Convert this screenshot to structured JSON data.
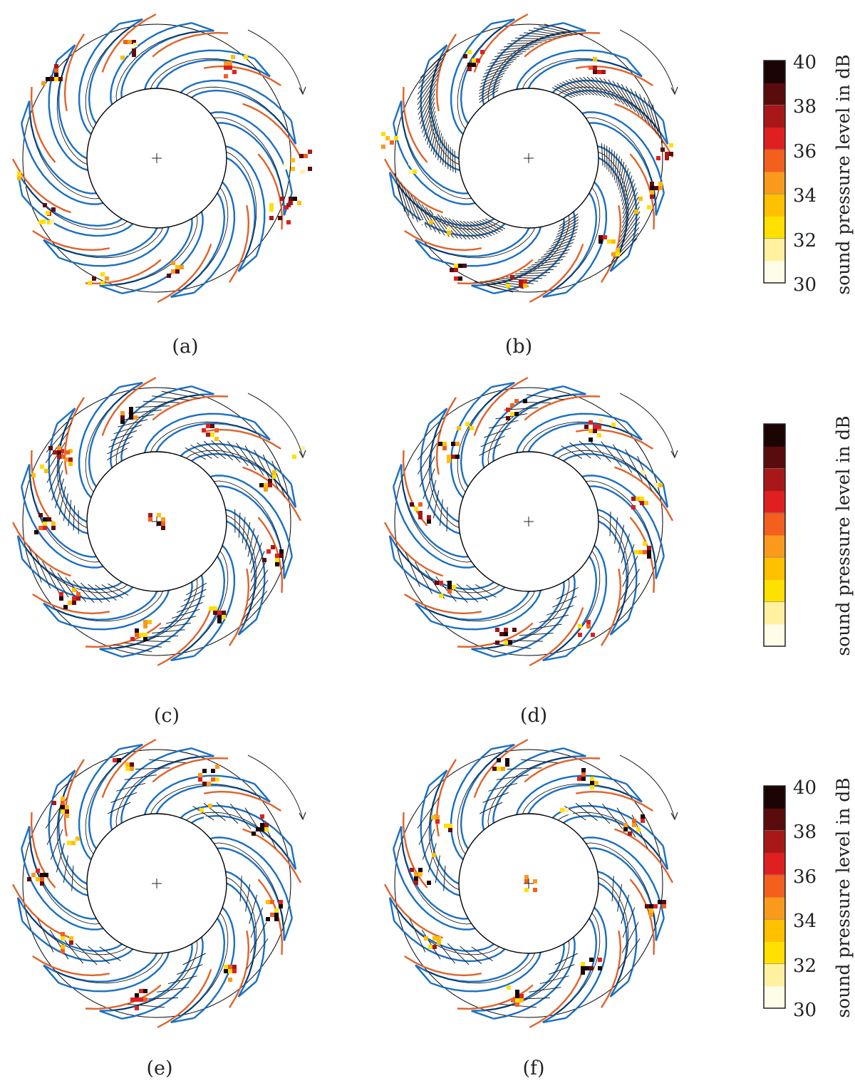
{
  "panels": [
    {
      "label": "(a)",
      "hatch": "none",
      "sources": [
        [
          -150,
          -120,
          3
        ],
        [
          -35,
          -160,
          2
        ],
        [
          -45,
          -150,
          1
        ],
        [
          100,
          -130,
          2
        ],
        [
          110,
          -145,
          1
        ],
        [
          200,
          0,
          2
        ],
        [
          190,
          10,
          1
        ],
        [
          -160,
          75,
          2
        ],
        [
          -150,
          80,
          1
        ],
        [
          -85,
          160,
          2
        ],
        [
          20,
          150,
          2
        ],
        [
          185,
          60,
          3
        ],
        [
          170,
          75,
          2
        ],
        [
          -190,
          25,
          1
        ]
      ]
    },
    {
      "label": "(b)",
      "hatch": "dense",
      "sources": [
        [
          -80,
          -140,
          3
        ],
        [
          90,
          -130,
          2
        ],
        [
          185,
          -15,
          2
        ],
        [
          160,
          60,
          1
        ],
        [
          170,
          45,
          3
        ],
        [
          -20,
          170,
          2
        ],
        [
          -105,
          160,
          3
        ],
        [
          110,
          120,
          3
        ],
        [
          -115,
          90,
          1
        ],
        [
          -175,
          10,
          1
        ],
        [
          -195,
          -25,
          2
        ],
        [
          -140,
          75,
          1
        ]
      ]
    },
    {
      "label": "(c)",
      "hatch": "medium",
      "sources": [
        [
          -45,
          -155,
          3
        ],
        [
          -130,
          -90,
          2
        ],
        [
          -140,
          -100,
          3
        ],
        [
          75,
          -125,
          3
        ],
        [
          150,
          -60,
          3
        ],
        [
          160,
          45,
          3
        ],
        [
          85,
          125,
          3
        ],
        [
          -25,
          150,
          3
        ],
        [
          -125,
          105,
          3
        ],
        [
          -160,
          0,
          3
        ],
        [
          0,
          0,
          3
        ],
        [
          -170,
          -80,
          1
        ],
        [
          190,
          -100,
          1
        ]
      ]
    },
    {
      "label": "(d)",
      "hatch": "sparse",
      "sources": [
        [
          -20,
          -160,
          3
        ],
        [
          90,
          -130,
          3
        ],
        [
          -115,
          -100,
          3
        ],
        [
          150,
          -35,
          2
        ],
        [
          160,
          40,
          3
        ],
        [
          -155,
          -15,
          3
        ],
        [
          -120,
          95,
          3
        ],
        [
          -35,
          155,
          3
        ],
        [
          75,
          150,
          2
        ],
        [
          110,
          -145,
          1
        ],
        [
          170,
          -60,
          1
        ],
        [
          -95,
          -140,
          1
        ]
      ]
    },
    {
      "label": "(e)",
      "hatch": "very-sparse",
      "sources": [
        [
          -50,
          -170,
          3
        ],
        [
          70,
          -155,
          3
        ],
        [
          145,
          -85,
          3
        ],
        [
          165,
          35,
          3
        ],
        [
          100,
          120,
          3
        ],
        [
          -25,
          160,
          3
        ],
        [
          -135,
          80,
          2
        ],
        [
          -170,
          -15,
          3
        ],
        [
          -135,
          -110,
          3
        ],
        [
          -120,
          -60,
          1
        ],
        [
          60,
          -100,
          1
        ]
      ]
    },
    {
      "label": "(f)",
      "hatch": "very-sparse",
      "sources": [
        [
          -45,
          -170,
          3
        ],
        [
          80,
          -150,
          3
        ],
        [
          145,
          -85,
          3
        ],
        [
          175,
          35,
          3
        ],
        [
          85,
          110,
          3
        ],
        [
          -25,
          155,
          3
        ],
        [
          -135,
          80,
          2
        ],
        [
          -155,
          -10,
          3
        ],
        [
          -125,
          -90,
          2
        ],
        [
          0,
          0,
          2
        ],
        [
          -130,
          -55,
          1
        ],
        [
          50,
          -100,
          1
        ]
      ]
    }
  ],
  "colorbar": {
    "title": "sound pressure level in dB",
    "ticks": [
      "40",
      "38",
      "36",
      "34",
      "32",
      "30"
    ],
    "min": 30,
    "max": 40,
    "colors": [
      "#fffde8",
      "#fff1a0",
      "#ffe000",
      "#ffc000",
      "#f99a1c",
      "#f3601e",
      "#e02020",
      "#a81818",
      "#5a0c0c",
      "#1a0404"
    ]
  },
  "colors": {
    "blade_blue": "#1a6fc0",
    "blade_orange": "#e0622a",
    "outline": "#000000"
  }
}
